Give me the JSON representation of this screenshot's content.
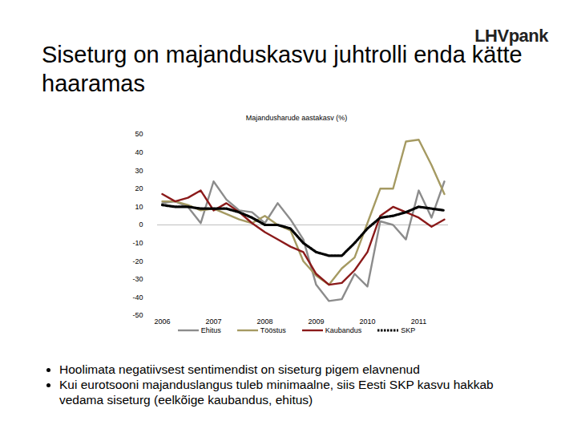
{
  "slide_title": "Siseturg on majanduskasvu juhtrolli enda kätte haaramas",
  "logo": "LHVpank",
  "chart_data": {
    "type": "line",
    "title": "Majandusharude aastakasv (%)",
    "categories": [
      "2006",
      null,
      null,
      null,
      "2007",
      null,
      null,
      null,
      "2008",
      null,
      null,
      null,
      "2009",
      null,
      null,
      null,
      "2010",
      null,
      null,
      null,
      "2011",
      null,
      null
    ],
    "series": [
      {
        "name": "Ehitus",
        "color": "#8c8c8c",
        "line_style": "solid",
        "values": [
          12,
          13,
          10,
          1,
          24,
          14,
          8,
          7,
          1,
          12,
          3,
          -8,
          -33,
          -42,
          -41,
          -27,
          -34,
          2,
          0,
          -8,
          19,
          4,
          24
        ]
      },
      {
        "name": "Tööstus",
        "color": "#a59a62",
        "line_style": "solid",
        "values": [
          13,
          13,
          11,
          8,
          9,
          6,
          3,
          1,
          5,
          0,
          -3,
          -20,
          -28,
          -33,
          -24,
          -18,
          1,
          20,
          20,
          46,
          47,
          33,
          17
        ]
      },
      {
        "name": "Kaubandus",
        "color": "#8b1a1a",
        "line_style": "solid",
        "values": [
          17,
          13,
          15,
          19,
          8,
          12,
          7,
          1,
          -4,
          -8,
          -12,
          -15,
          -27,
          -33,
          -32,
          -25,
          -15,
          5,
          10,
          7,
          4,
          -1,
          3
        ]
      },
      {
        "name": "SKP",
        "color": "#000000",
        "line_style": "dotted",
        "values": [
          11,
          10,
          10,
          9,
          9,
          9,
          7,
          4,
          0,
          0,
          -2,
          -10,
          -15,
          -17,
          -17,
          -10,
          -2,
          4,
          5,
          7,
          10,
          9,
          8
        ]
      }
    ],
    "ylim": [
      -50,
      50
    ],
    "yticks": [
      -50,
      -40,
      -30,
      -20,
      -10,
      0,
      10,
      20,
      30,
      40,
      50
    ],
    "grid": false,
    "legend": "bottom"
  },
  "bullets": [
    "Hoolimata negatiivsest sentimendist on siseturg pigem elavnenud",
    "Kui eurotsooni majanduslangus tuleb minimaalne, siis Eesti SKP kasvu hakkab vedama siseturg (eelkõige kaubandus, ehitus)"
  ]
}
